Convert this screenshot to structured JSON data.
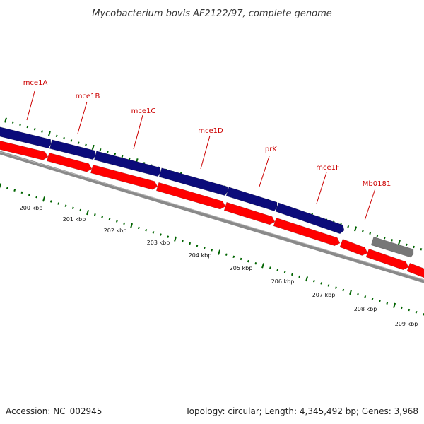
{
  "title": "Mycobacterium bovis AF2122/97, complete genome",
  "footer": {
    "accession": "Accession: NC_002945",
    "summary": "Topology: circular; Length: 4,345,492 bp; Genes: 3,968"
  },
  "colors": {
    "blue_feature": "#0b0b7a",
    "red_feature": "#ff0000",
    "grey_feature": "#777777",
    "backbone": "#8a8a8a",
    "tick": "#006400",
    "label": "#cc0000"
  },
  "genes": [
    {
      "name": "mce1A"
    },
    {
      "name": "mce1B"
    },
    {
      "name": "mce1C"
    },
    {
      "name": "mce1D"
    },
    {
      "name": "lprK"
    },
    {
      "name": "mce1F"
    },
    {
      "name": "Mb0181"
    }
  ],
  "scale_labels": [
    "200 kbp",
    "201 kbp",
    "202 kbp",
    "203 kbp",
    "204 kbp",
    "205 kbp",
    "206 kbp",
    "207 kbp",
    "208 kbp",
    "209 kbp"
  ]
}
